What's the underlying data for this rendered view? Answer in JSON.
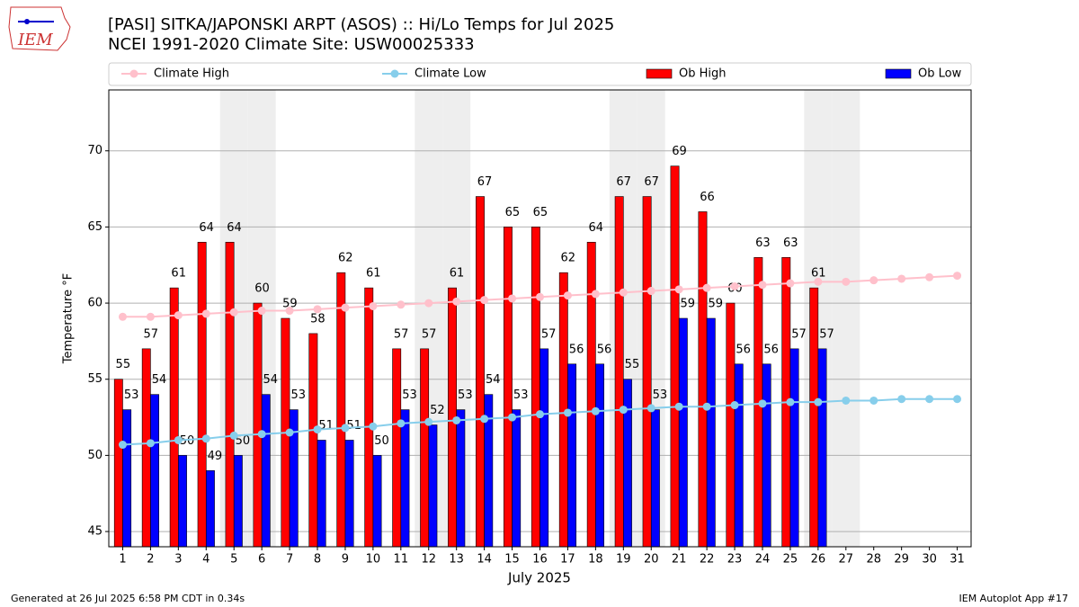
{
  "chart_data": {
    "type": "bar_line",
    "title": "[PASI] SITKA/JAPONSKI ARPT (ASOS) :: Hi/Lo Temps for Jul 2025",
    "subtitle": "NCEI 1991-2020 Climate Site: USW00025333",
    "logo_text": "IEM",
    "xlabel": "July 2025",
    "ylabel": "Temperature °F",
    "x": [
      1,
      2,
      3,
      4,
      5,
      6,
      7,
      8,
      9,
      10,
      11,
      12,
      13,
      14,
      15,
      16,
      17,
      18,
      19,
      20,
      21,
      22,
      23,
      24,
      25,
      26,
      27,
      28,
      29,
      30,
      31
    ],
    "xlim": [
      0.5,
      31.5
    ],
    "xticks": [
      1,
      2,
      3,
      4,
      5,
      6,
      7,
      8,
      9,
      10,
      11,
      12,
      13,
      14,
      15,
      16,
      17,
      18,
      19,
      20,
      21,
      22,
      23,
      24,
      25,
      26,
      27,
      28,
      29,
      30,
      31
    ],
    "ylim": [
      44,
      74
    ],
    "yticks": [
      45,
      50,
      55,
      60,
      65,
      70
    ],
    "grid": true,
    "shaded_days": [
      5,
      6,
      12,
      13,
      19,
      20,
      26,
      27
    ],
    "legend": "top",
    "series": [
      {
        "name": "Climate High",
        "kind": "line",
        "color": "#ffc0cb",
        "values": [
          59.1,
          59.1,
          59.2,
          59.3,
          59.4,
          59.5,
          59.5,
          59.6,
          59.7,
          59.8,
          59.9,
          60.0,
          60.1,
          60.2,
          60.3,
          60.4,
          60.5,
          60.6,
          60.7,
          60.8,
          60.9,
          61.0,
          61.1,
          61.2,
          61.3,
          61.4,
          61.4,
          61.5,
          61.6,
          61.7,
          61.8
        ]
      },
      {
        "name": "Climate Low",
        "kind": "line",
        "color": "#87ceeb",
        "values": [
          50.7,
          50.8,
          51.0,
          51.1,
          51.3,
          51.4,
          51.5,
          51.7,
          51.8,
          51.9,
          52.1,
          52.2,
          52.3,
          52.4,
          52.5,
          52.7,
          52.8,
          52.9,
          53.0,
          53.1,
          53.2,
          53.2,
          53.3,
          53.4,
          53.5,
          53.5,
          53.6,
          53.6,
          53.7,
          53.7,
          53.7
        ]
      },
      {
        "name": "Ob High",
        "kind": "bar",
        "color": "#ff0000",
        "values": [
          55,
          57,
          61,
          64,
          64,
          60,
          59,
          58,
          62,
          61,
          57,
          57,
          61,
          67,
          65,
          65,
          62,
          64,
          67,
          67,
          69,
          66,
          60,
          63,
          63,
          61,
          null,
          null,
          null,
          null,
          null
        ]
      },
      {
        "name": "Ob Low",
        "kind": "bar",
        "color": "#0000ff",
        "values": [
          53,
          54,
          50,
          49,
          50,
          54,
          53,
          51,
          51,
          50,
          53,
          52,
          53,
          54,
          53,
          57,
          56,
          56,
          55,
          53,
          59,
          59,
          56,
          56,
          57,
          57,
          null,
          null,
          null,
          null,
          null
        ]
      }
    ],
    "footer_left": "Generated at 26 Jul 2025 6:58 PM CDT in 0.34s",
    "footer_right": "IEM Autoplot App #17"
  }
}
